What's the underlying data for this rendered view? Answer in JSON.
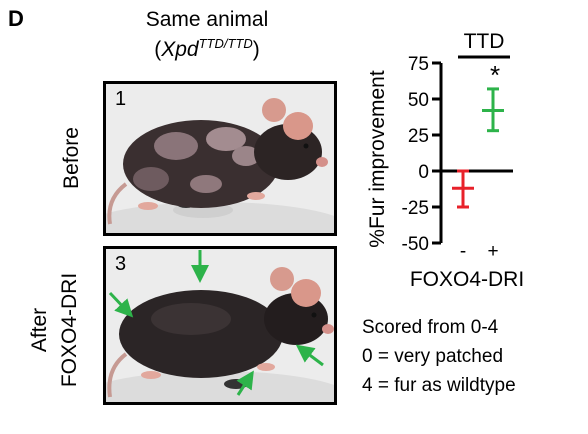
{
  "panel_letter": "D",
  "photos_title_line1": "Same animal",
  "photos_title_line2_italic": "Xpd",
  "photos_title_line2_sup": "TTD/TTD",
  "photo_before_number": "1",
  "photo_after_number": "3",
  "label_before": "Before",
  "label_after_line1": "After",
  "label_after_line2": "FOXO4-DRI",
  "chart_data": {
    "type": "scatter",
    "group_label": "TTD",
    "significance_marker": "*",
    "ylabel": "%Fur improvement",
    "xlabel": "FOXO4-DRI",
    "categories": [
      "-",
      "+"
    ],
    "ylim": [
      -50,
      75
    ],
    "yticks": [
      "75",
      "50",
      "25",
      "0",
      "-25",
      "-50"
    ],
    "ytick_values": [
      75,
      50,
      25,
      0,
      -25,
      -50
    ],
    "means": [
      -12,
      42
    ],
    "err_low": [
      -25,
      28
    ],
    "err_high": [
      0,
      57
    ],
    "colors": [
      "#e8212a",
      "#2db34a"
    ]
  },
  "notes": {
    "line1": "Scored from 0-4",
    "line2": "0 = very patched",
    "line3": "4 = fur as wildtype"
  }
}
